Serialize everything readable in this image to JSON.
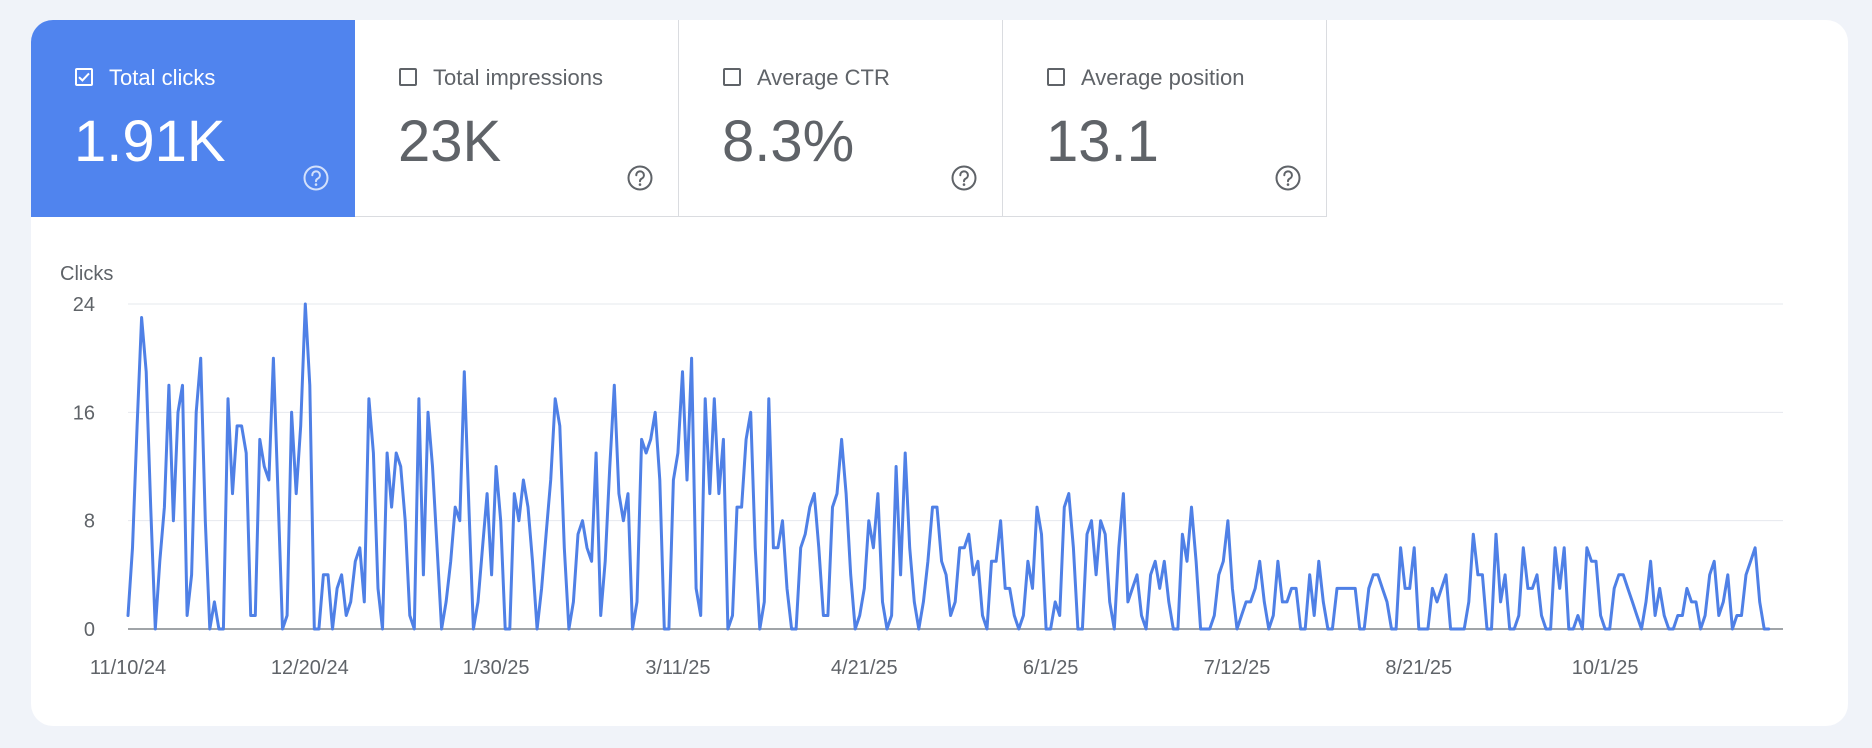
{
  "colors": {
    "accent": "#5084ee",
    "line": "#4f80e6",
    "grid": "#e6e8ee",
    "axis": "#5f6368"
  },
  "metrics": [
    {
      "label": "Total clicks",
      "value": "1.91K",
      "checked": true,
      "help_icon": "help-circle-icon"
    },
    {
      "label": "Total impressions",
      "value": "23K",
      "checked": false,
      "help_icon": "help-circle-icon"
    },
    {
      "label": "Average CTR",
      "value": "8.3%",
      "checked": false,
      "help_icon": "help-circle-icon"
    },
    {
      "label": "Average position",
      "value": "13.1",
      "checked": false,
      "help_icon": "help-circle-icon"
    }
  ],
  "chart_data": {
    "type": "line",
    "title": "",
    "ylabel": "Clicks",
    "xlabel": "",
    "ylim": [
      0,
      24
    ],
    "yticks": [
      0,
      8,
      16,
      24
    ],
    "grid": true,
    "x_start": "11/10/24",
    "x_days_total": 359,
    "xticks": [
      {
        "label": "11/10/24",
        "day": 0
      },
      {
        "label": "12/20/24",
        "day": 40
      },
      {
        "label": "1/30/25",
        "day": 81
      },
      {
        "label": "3/11/25",
        "day": 121
      },
      {
        "label": "4/21/25",
        "day": 162
      },
      {
        "label": "6/1/25",
        "day": 203
      },
      {
        "label": "7/12/25",
        "day": 244
      },
      {
        "label": "8/21/25",
        "day": 284
      },
      {
        "label": "10/1/25",
        "day": 325
      }
    ],
    "series": [
      {
        "name": "Clicks",
        "values": [
          1,
          6,
          15,
          23,
          19,
          9,
          0,
          5,
          9,
          18,
          8,
          16,
          18,
          1,
          4,
          16,
          20,
          8,
          0,
          2,
          0,
          0,
          17,
          10,
          15,
          15,
          13,
          1,
          1,
          14,
          12,
          11,
          20,
          10,
          0,
          1,
          16,
          10,
          15,
          24,
          18,
          0,
          0,
          4,
          4,
          0,
          3,
          4,
          1,
          2,
          5,
          6,
          2,
          17,
          13,
          3,
          0,
          13,
          9,
          13,
          12,
          8,
          1,
          0,
          17,
          4,
          16,
          12,
          6,
          0,
          2,
          5,
          9,
          8,
          19,
          9,
          0,
          2,
          6,
          10,
          4,
          12,
          8,
          0,
          0,
          10,
          8,
          11,
          9,
          5,
          0,
          3,
          7,
          11,
          17,
          15,
          6,
          0,
          2,
          7,
          8,
          6,
          5,
          13,
          1,
          5,
          12,
          18,
          10,
          8,
          10,
          0,
          2,
          14,
          13,
          14,
          16,
          11,
          0,
          0,
          11,
          13,
          19,
          11,
          20,
          3,
          1,
          17,
          10,
          17,
          10,
          14,
          0,
          1,
          9,
          9,
          14,
          16,
          6,
          0,
          2,
          17,
          6,
          6,
          8,
          3,
          0,
          0,
          6,
          7,
          9,
          10,
          6,
          1,
          1,
          9,
          10,
          14,
          10,
          4,
          0,
          1,
          3,
          8,
          6,
          10,
          2,
          0,
          1,
          12,
          4,
          13,
          6,
          2,
          0,
          2,
          5,
          9,
          9,
          5,
          4,
          1,
          2,
          6,
          6,
          7,
          4,
          5,
          1,
          0,
          5,
          5,
          8,
          3,
          3,
          1,
          0,
          1,
          5,
          3,
          9,
          7,
          0,
          0,
          2,
          1,
          9,
          10,
          6,
          0,
          0,
          7,
          8,
          4,
          8,
          7,
          2,
          0,
          6,
          10,
          2,
          3,
          4,
          1,
          0,
          4,
          5,
          3,
          5,
          2,
          0,
          0,
          7,
          5,
          9,
          5,
          0,
          0,
          0,
          1,
          4,
          5,
          8,
          3,
          0,
          1,
          2,
          2,
          3,
          5,
          2,
          0,
          1,
          5,
          2,
          2,
          3,
          3,
          0,
          0,
          4,
          1,
          5,
          2,
          0,
          0,
          3,
          3,
          3,
          3,
          3,
          0,
          0,
          3,
          4,
          4,
          3,
          2,
          0,
          0,
          6,
          3,
          3,
          6,
          0,
          0,
          0,
          3,
          2,
          3,
          4,
          0,
          0,
          0,
          0,
          2,
          7,
          4,
          4,
          0,
          0,
          7,
          2,
          4,
          0,
          0,
          1,
          6,
          3,
          3,
          4,
          1,
          0,
          0,
          6,
          3,
          6,
          0,
          0,
          1,
          0,
          6,
          5,
          5,
          1,
          0,
          0,
          3,
          4,
          4,
          3,
          2,
          1,
          0,
          2,
          5,
          1,
          3,
          1,
          0,
          0,
          1,
          1,
          3,
          2,
          2,
          0,
          1,
          4,
          5,
          1,
          2,
          4,
          0,
          1,
          1,
          4,
          5,
          6,
          2,
          0,
          0
        ]
      }
    ]
  }
}
